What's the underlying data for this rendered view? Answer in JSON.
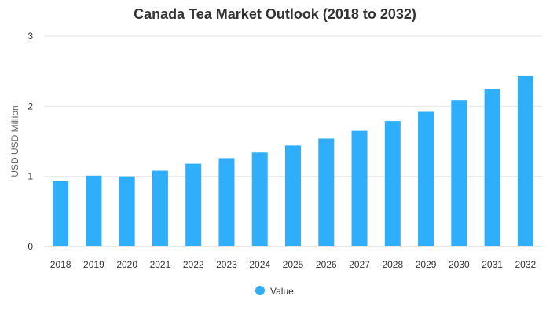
{
  "chart_data": {
    "type": "bar",
    "title": "Canada Tea Market Outlook (2018 to 2032)",
    "xlabel": "",
    "ylabel": "USD USD Million",
    "categories": [
      "2018",
      "2019",
      "2020",
      "2021",
      "2022",
      "2023",
      "2024",
      "2025",
      "2026",
      "2027",
      "2028",
      "2029",
      "2030",
      "2031",
      "2032"
    ],
    "series": [
      {
        "name": "Value",
        "color": "#2eaefb",
        "values": [
          0.93,
          1.01,
          1.0,
          1.08,
          1.18,
          1.26,
          1.34,
          1.44,
          1.54,
          1.65,
          1.79,
          1.92,
          2.08,
          2.25,
          2.43
        ]
      }
    ],
    "ylim": [
      0,
      3
    ],
    "yticks": [
      "0",
      "1",
      "2",
      "3"
    ],
    "grid": true,
    "legend_position": "bottom-center"
  }
}
